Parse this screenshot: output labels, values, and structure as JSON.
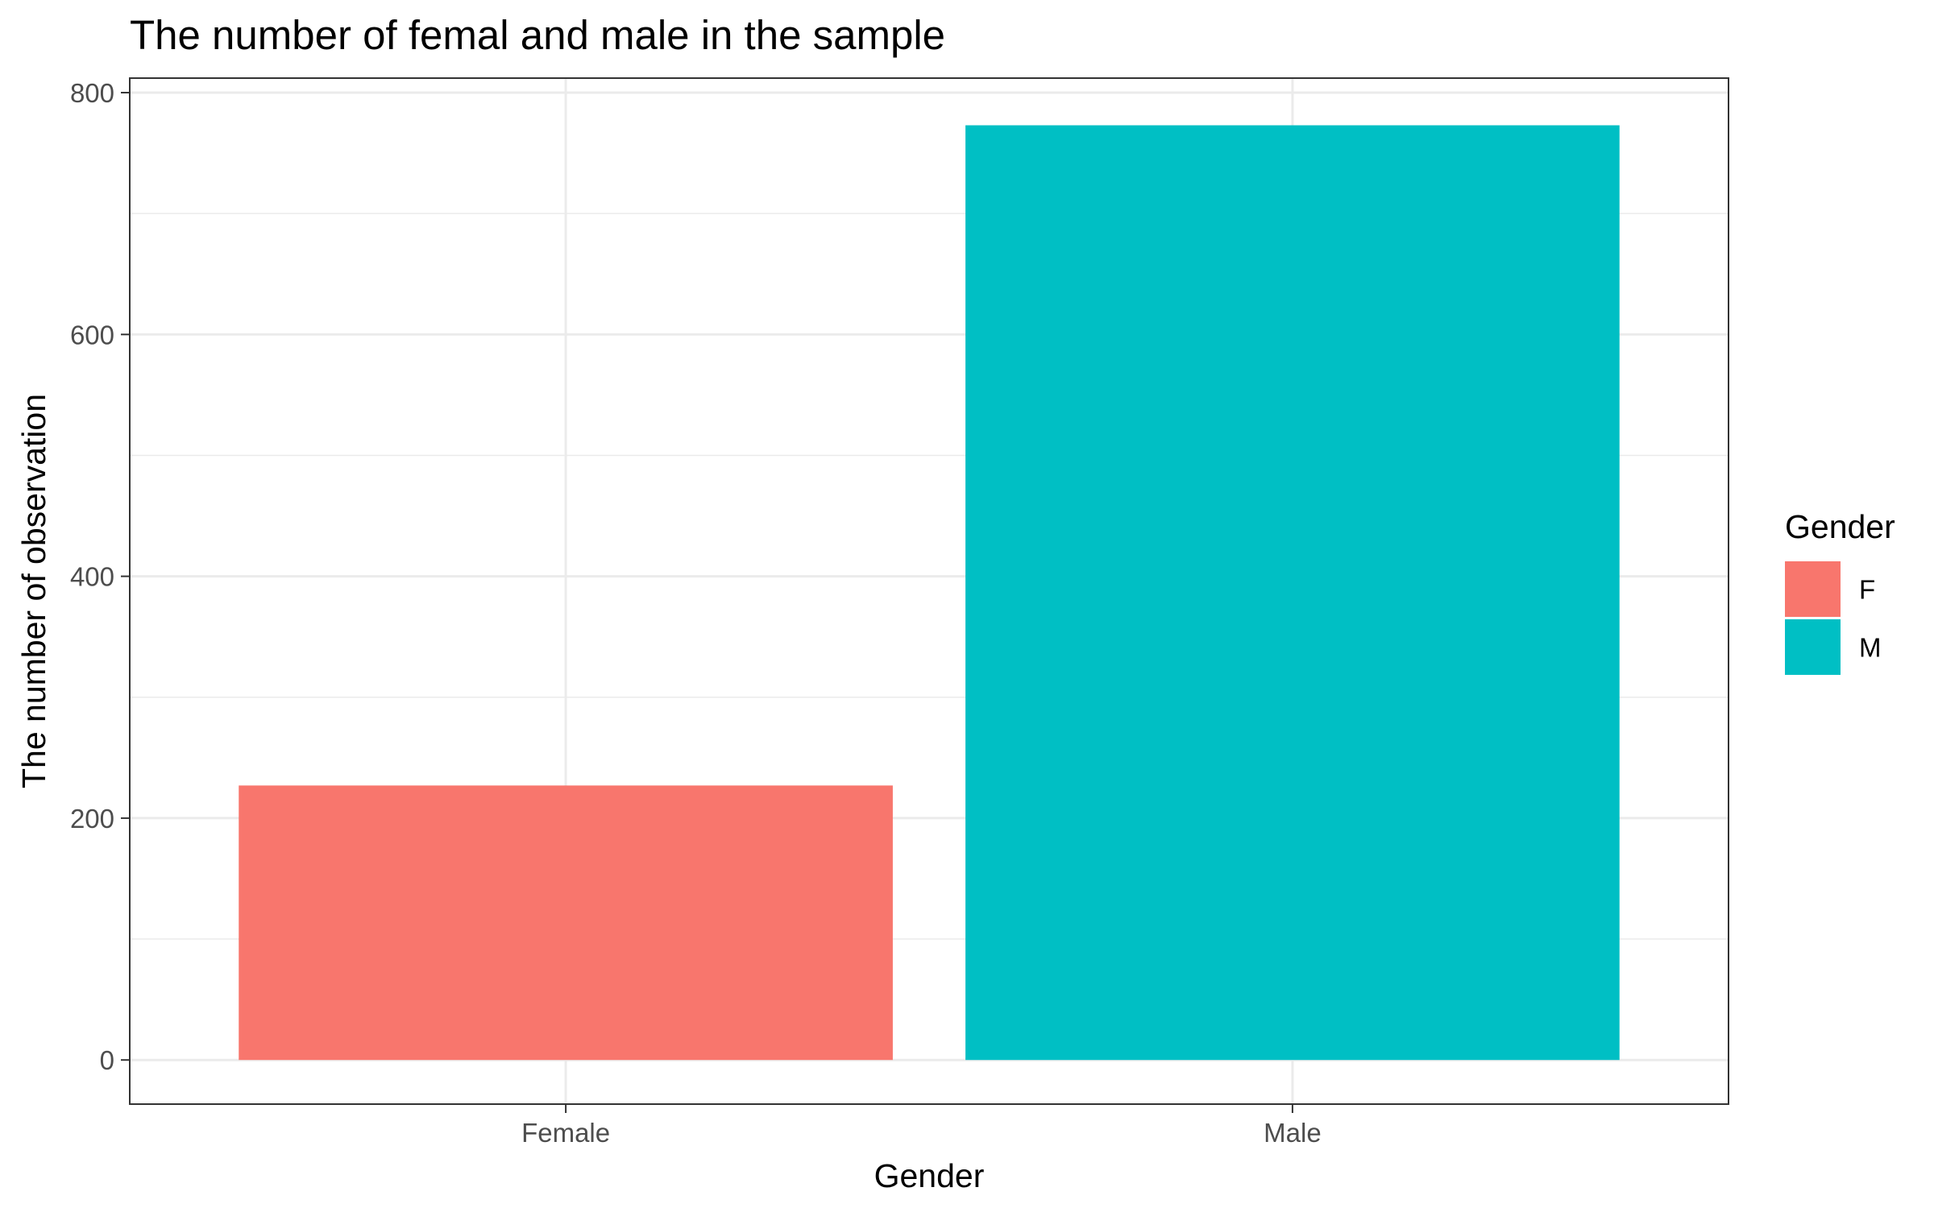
{
  "chart_data": {
    "type": "bar",
    "title": "The number of femal and male in the sample",
    "xlabel": "Gender",
    "ylabel": "The number of observation",
    "categories": [
      "Female",
      "Male"
    ],
    "values": [
      227,
      773
    ],
    "ylim": [
      -36.5,
      812
    ],
    "y_major_ticks": [
      0,
      200,
      400,
      600,
      800
    ],
    "y_minor_ticks": [
      100,
      300,
      500,
      700
    ],
    "grid": true,
    "legend": {
      "title": "Gender",
      "position": "right",
      "entries": [
        {
          "label": "F",
          "color": "#F8766D"
        },
        {
          "label": "M",
          "color": "#00BFC4"
        }
      ]
    },
    "bar_colors": [
      "#F8766D",
      "#00BFC4"
    ]
  }
}
